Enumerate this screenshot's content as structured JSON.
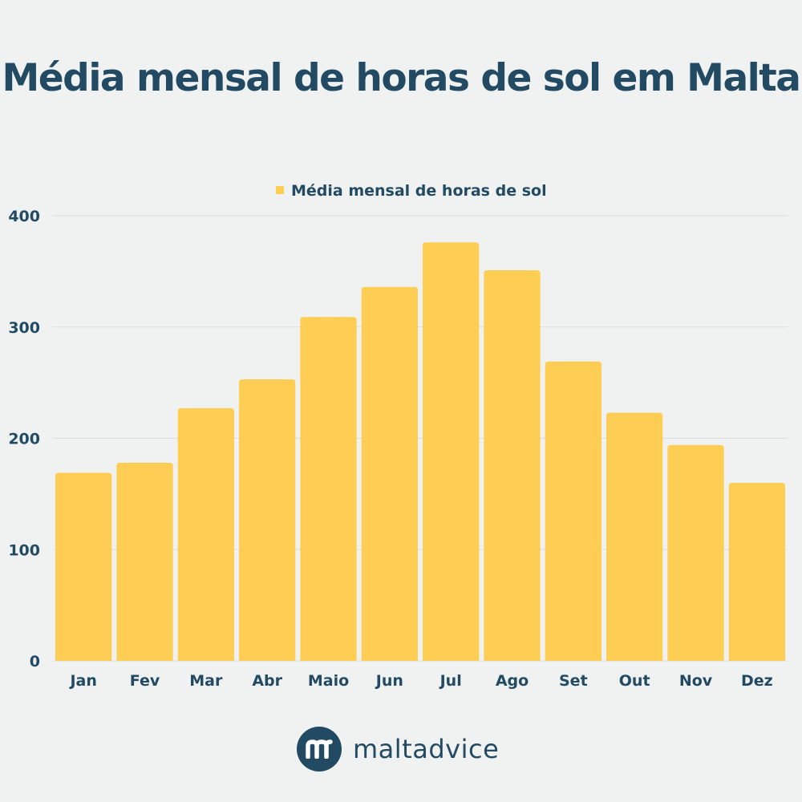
{
  "title": "Média mensal de horas de sol em Malta",
  "brand": {
    "name": "maltadvice",
    "logo_icon": "maltadvice-m-logo-icon"
  },
  "colors": {
    "bar": "#fecd54",
    "text": "#234a63",
    "grid": "#d9dcdc",
    "background": "#f0f2f2"
  },
  "chart_data": {
    "type": "bar",
    "categories": [
      "Jan",
      "Fev",
      "Mar",
      "Abr",
      "Maio",
      "Jun",
      "Jul",
      "Ago",
      "Set",
      "Out",
      "Nov",
      "Dez"
    ],
    "series": [
      {
        "name": "Média mensal de horas de sol",
        "values": [
          169,
          178,
          227,
          253,
          309,
          336,
          376,
          351,
          269,
          223,
          194,
          160
        ]
      }
    ],
    "yticks": [
      0,
      100,
      200,
      300,
      400
    ],
    "ylim": [
      0,
      400
    ],
    "grid": true,
    "legend": "top-center"
  }
}
